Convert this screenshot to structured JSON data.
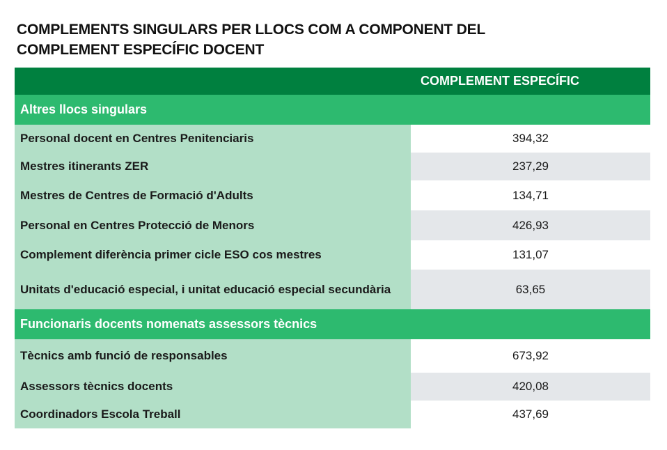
{
  "title": {
    "line1": "COMPLEMENTS SINGULARS PER LLOCS COM A COMPONENT DEL",
    "line2": "COMPLEMENT ESPECÍFIC DOCENT"
  },
  "table": {
    "header": {
      "label": "",
      "value": "COMPLEMENT ESPECÍFIC"
    },
    "sections": [
      {
        "title": "Altres llocs singulars",
        "rows": [
          {
            "label": "Personal docent en Centres Penitenciaris",
            "value": "394,32"
          },
          {
            "label": "Mestres itinerants ZER",
            "value": "237,29"
          },
          {
            "label": "Mestres de Centres de Formació d'Adults",
            "value": "134,71"
          },
          {
            "label": "Personal en Centres Protecció de Menors",
            "value": "426,93"
          },
          {
            "label": "Complement diferència primer cicle ESO cos mestres",
            "value": "131,07"
          },
          {
            "label": "Unitats d'educació especial, i unitat educació especial secundària",
            "value": "63,65"
          }
        ]
      },
      {
        "title": "Funcionaris docents nomenats assessors tècnics",
        "rows": [
          {
            "label": "Tècnics amb funció de responsables",
            "value": "673,92"
          },
          {
            "label": "Assessors tècnics docents",
            "value": "420,08"
          },
          {
            "label": "Coordinadors Escola Treball",
            "value": "437,69"
          }
        ]
      }
    ]
  },
  "colors": {
    "header_green": "#00803f",
    "section_green": "#2dba6f",
    "label_green": "#b2dfc7",
    "row_gray": "#e4e7ea"
  }
}
